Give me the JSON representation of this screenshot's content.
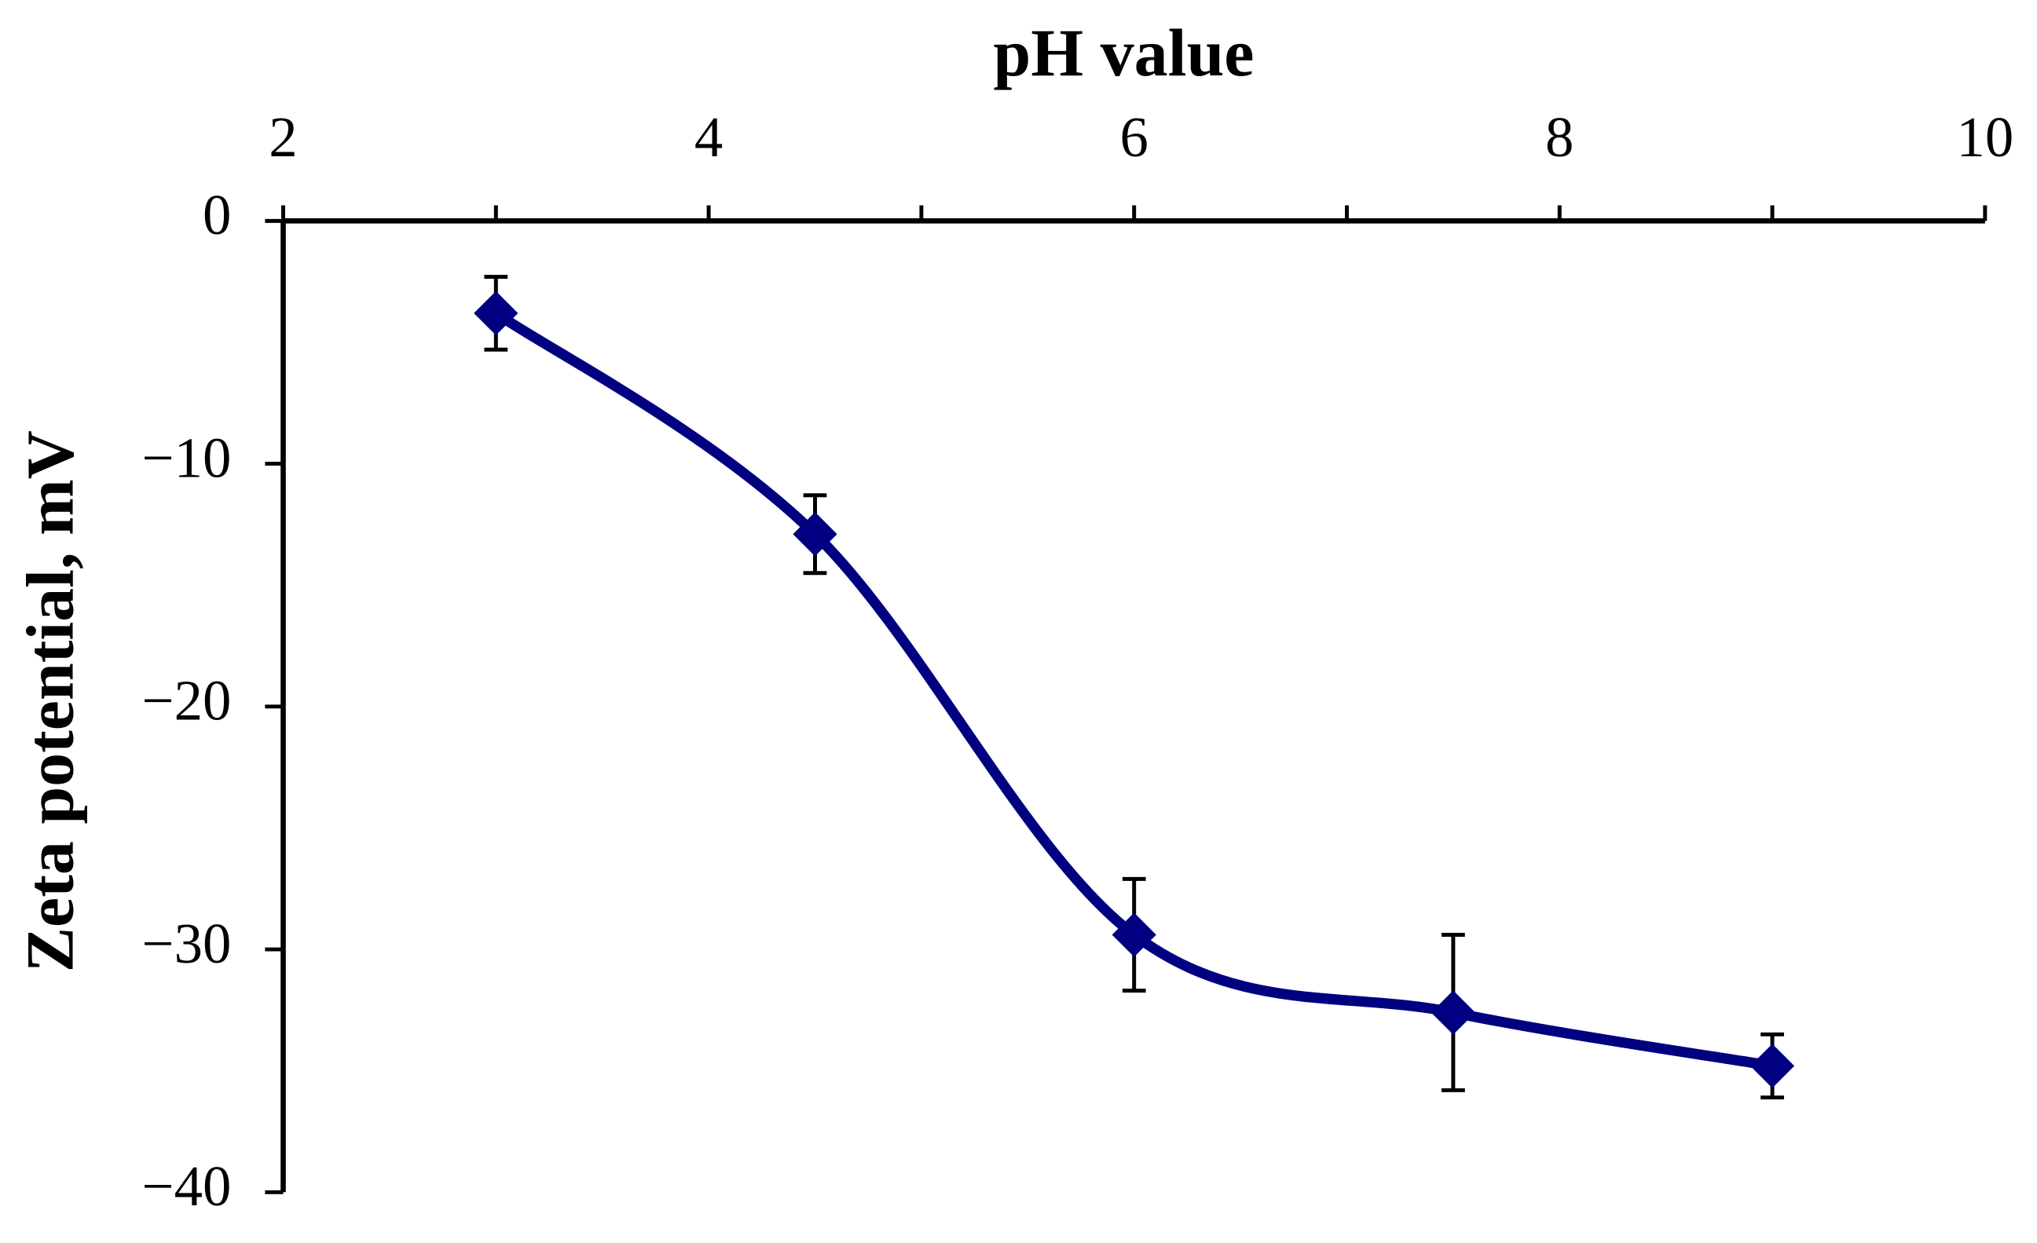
{
  "chart_data": {
    "type": "line",
    "title": "pH value",
    "y_label": "Zeta potential, mV",
    "x": [
      3,
      4.5,
      6,
      7.5,
      9
    ],
    "series": [
      {
        "color": "#000080",
        "values": [
          -3.8,
          -12.9,
          -29.4,
          -32.6,
          -34.8
        ],
        "errors": [
          1.5,
          1.6,
          2.3,
          3.2,
          1.3
        ]
      }
    ],
    "xlim": [
      2,
      10
    ],
    "xticks": [
      2,
      4,
      6,
      8,
      10
    ],
    "ylim": [
      -40,
      0
    ],
    "yticks": [
      {
        "value": 0,
        "label": "0"
      },
      {
        "value": -10,
        "label": "−10"
      },
      {
        "value": -20,
        "label": "−20"
      },
      {
        "value": -30,
        "label": "−30"
      },
      {
        "value": -40,
        "label": "−40"
      }
    ],
    "x_axis_position": "top",
    "smooth": true,
    "grid": false
  }
}
